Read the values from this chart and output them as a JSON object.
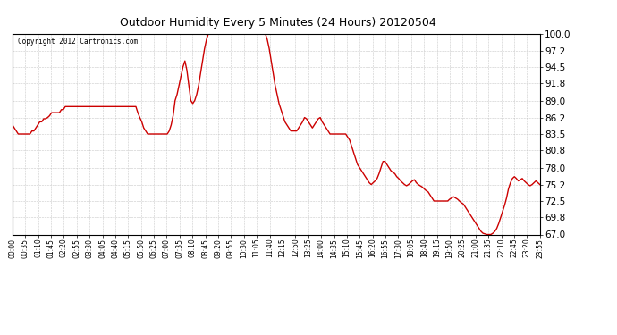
{
  "title": "Outdoor Humidity Every 5 Minutes (24 Hours) 20120504",
  "copyright": "Copyright 2012 Cartronics.com",
  "line_color": "#cc0000",
  "background_color": "#ffffff",
  "grid_color": "#bbbbbb",
  "ylim": [
    67.0,
    100.0
  ],
  "yticks": [
    67.0,
    69.8,
    72.5,
    75.2,
    78.0,
    80.8,
    83.5,
    86.2,
    89.0,
    91.8,
    94.5,
    97.2,
    100.0
  ],
  "humidity_values": [
    85.0,
    84.5,
    84.0,
    83.5,
    83.5,
    83.5,
    83.5,
    83.5,
    83.5,
    83.5,
    84.0,
    84.0,
    84.5,
    85.0,
    85.5,
    85.5,
    86.0,
    86.0,
    86.2,
    86.5,
    87.0,
    87.0,
    87.0,
    87.0,
    87.0,
    87.5,
    87.5,
    88.0,
    88.0,
    88.0,
    88.0,
    88.0,
    88.0,
    88.0,
    88.0,
    88.0,
    88.0,
    88.0,
    88.0,
    88.0,
    88.0,
    88.0,
    88.0,
    88.0,
    88.0,
    88.0,
    88.0,
    88.0,
    88.0,
    88.0,
    88.0,
    88.0,
    88.0,
    88.0,
    88.0,
    88.0,
    88.0,
    88.0,
    88.0,
    88.0,
    88.0,
    88.0,
    88.0,
    88.0,
    87.0,
    86.2,
    85.5,
    84.5,
    84.0,
    83.5,
    83.5,
    83.5,
    83.5,
    83.5,
    83.5,
    83.5,
    83.5,
    83.5,
    83.5,
    83.5,
    84.0,
    85.0,
    86.5,
    89.0,
    90.0,
    91.5,
    93.0,
    94.5,
    95.5,
    94.0,
    91.5,
    89.0,
    88.5,
    89.0,
    90.0,
    91.5,
    93.5,
    95.5,
    97.5,
    99.0,
    100.0,
    100.0,
    100.0,
    100.0,
    100.0,
    100.0,
    100.0,
    100.0,
    100.0,
    100.0,
    100.0,
    100.0,
    100.0,
    100.0,
    100.0,
    100.0,
    100.0,
    100.0,
    100.0,
    100.0,
    100.0,
    100.0,
    100.0,
    100.0,
    100.0,
    100.0,
    100.0,
    100.0,
    100.0,
    100.0,
    99.0,
    97.5,
    95.5,
    93.5,
    91.5,
    90.0,
    88.5,
    87.5,
    86.5,
    85.5,
    85.0,
    84.5,
    84.0,
    84.0,
    84.0,
    84.0,
    84.5,
    85.0,
    85.5,
    86.2,
    86.0,
    85.5,
    85.0,
    84.5,
    85.0,
    85.5,
    86.0,
    86.2,
    85.5,
    85.0,
    84.5,
    84.0,
    83.5,
    83.5,
    83.5,
    83.5,
    83.5,
    83.5,
    83.5,
    83.5,
    83.5,
    83.0,
    82.5,
    81.5,
    80.5,
    79.5,
    78.5,
    78.0,
    77.5,
    77.0,
    76.5,
    76.0,
    75.5,
    75.2,
    75.5,
    75.8,
    76.2,
    77.0,
    78.0,
    79.0,
    79.0,
    78.5,
    78.0,
    77.5,
    77.2,
    77.0,
    76.5,
    76.2,
    75.8,
    75.5,
    75.2,
    75.0,
    75.2,
    75.5,
    75.8,
    76.0,
    75.5,
    75.2,
    75.0,
    74.8,
    74.5,
    74.2,
    74.0,
    73.5,
    73.0,
    72.5,
    72.5,
    72.5,
    72.5,
    72.5,
    72.5,
    72.5,
    72.5,
    72.8,
    73.0,
    73.2,
    73.0,
    72.8,
    72.5,
    72.2,
    72.0,
    71.5,
    71.0,
    70.5,
    70.0,
    69.5,
    69.0,
    68.5,
    68.0,
    67.5,
    67.2,
    67.1,
    67.0,
    67.0,
    67.0,
    67.2,
    67.5,
    68.0,
    68.8,
    69.8,
    70.8,
    71.8,
    73.0,
    74.5,
    75.5,
    76.2,
    76.5,
    76.2,
    75.8,
    76.0,
    76.2,
    75.8,
    75.5,
    75.2,
    75.0,
    75.2,
    75.5,
    75.8,
    75.5,
    75.2
  ],
  "xtick_labels": [
    "00:00",
    "00:35",
    "01:10",
    "01:45",
    "02:20",
    "02:55",
    "03:30",
    "04:05",
    "04:40",
    "05:15",
    "05:50",
    "06:25",
    "07:00",
    "07:35",
    "08:10",
    "08:45",
    "09:20",
    "09:55",
    "10:30",
    "11:05",
    "11:40",
    "12:15",
    "12:50",
    "13:25",
    "14:00",
    "14:35",
    "15:10",
    "15:45",
    "16:20",
    "16:55",
    "17:30",
    "18:05",
    "18:40",
    "19:15",
    "19:50",
    "20:25",
    "21:00",
    "21:35",
    "22:10",
    "22:45",
    "23:20",
    "23:55"
  ],
  "n_total": 289
}
